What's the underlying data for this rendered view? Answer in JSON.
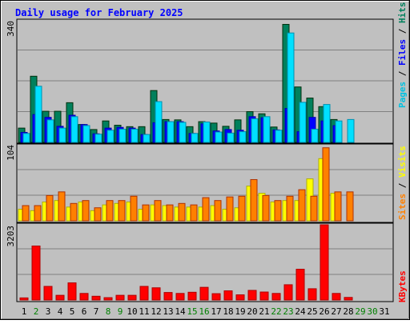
{
  "chart_data": [
    {
      "type": "bar",
      "title": "Daily usage for February 2025",
      "days": [
        "1",
        "2",
        "3",
        "4",
        "5",
        "6",
        "7",
        "8",
        "9",
        "10",
        "11",
        "12",
        "13",
        "14",
        "15",
        "16",
        "17",
        "18",
        "19",
        "20",
        "21",
        "22",
        "23",
        "24",
        "25",
        "26",
        "27",
        "28",
        "29",
        "30",
        "31"
      ],
      "weekend_days": [
        "2",
        "8",
        "9",
        "15",
        "16",
        "22",
        "23",
        "29",
        "30"
      ],
      "panel": "Pages / Files / Hits",
      "ylabel": "Pages / Files / Hits",
      "ymax_label": "340",
      "ylim": [
        0,
        340
      ],
      "series": [
        {
          "name": "Hits",
          "color": "#00805c",
          "values": [
            40,
            185,
            87,
            87,
            111,
            50,
            36,
            60,
            48,
            44,
            44,
            145,
            64,
            63,
            44,
            58,
            54,
            45,
            63,
            86,
            80,
            43,
            330,
            155,
            124,
            100,
            64,
            0,
            0,
            0,
            0
          ]
        },
        {
          "name": "Files",
          "color": "#0000ff",
          "values": [
            28,
            78,
            70,
            45,
            76,
            50,
            24,
            40,
            42,
            40,
            22,
            55,
            58,
            58,
            25,
            52,
            32,
            36,
            34,
            72,
            69,
            35,
            95,
            30,
            70,
            60,
            47,
            0,
            0,
            0,
            0
          ]
        },
        {
          "name": "Pages",
          "color": "#00e0ff",
          "values": [
            25,
            157,
            63,
            40,
            72,
            47,
            23,
            34,
            37,
            37,
            22,
            114,
            58,
            56,
            25,
            57,
            29,
            26,
            30,
            66,
            72,
            34,
            306,
            112,
            37,
            106,
            60,
            64,
            0,
            0,
            0
          ]
        }
      ]
    },
    {
      "type": "bar",
      "panel": "Sites / Visits",
      "ylabel": "Sites / Visits",
      "ymax_label": "104",
      "ylim": [
        0,
        104
      ],
      "series": [
        {
          "name": "Sites",
          "color": "#ffff00",
          "values": [
            16,
            14,
            26,
            28,
            19,
            26,
            14,
            22,
            24,
            26,
            16,
            22,
            21,
            19,
            19,
            19,
            21,
            16,
            18,
            48,
            38,
            26,
            28,
            28,
            58,
            86,
            38,
            0,
            0,
            0,
            0
          ]
        },
        {
          "name": "Visits",
          "color": "#ff8000",
          "values": [
            21,
            21,
            35,
            40,
            24,
            28,
            18,
            28,
            28,
            34,
            22,
            28,
            22,
            24,
            22,
            32,
            28,
            33,
            34,
            57,
            35,
            28,
            34,
            43,
            34,
            101,
            40,
            40,
            0,
            0,
            0
          ]
        }
      ]
    },
    {
      "type": "bar",
      "panel": "KBytes",
      "ylabel": "KBytes",
      "ymax_label": "3203",
      "ylim": [
        0,
        3203
      ],
      "series": [
        {
          "name": "KBytes",
          "color": "#ff0000",
          "values": [
            90,
            2300,
            580,
            200,
            730,
            280,
            160,
            100,
            200,
            200,
            580,
            520,
            320,
            280,
            330,
            540,
            270,
            390,
            220,
            410,
            340,
            280,
            650,
            1310,
            480,
            3203,
            280,
            110,
            0,
            0,
            0
          ]
        }
      ]
    }
  ]
}
